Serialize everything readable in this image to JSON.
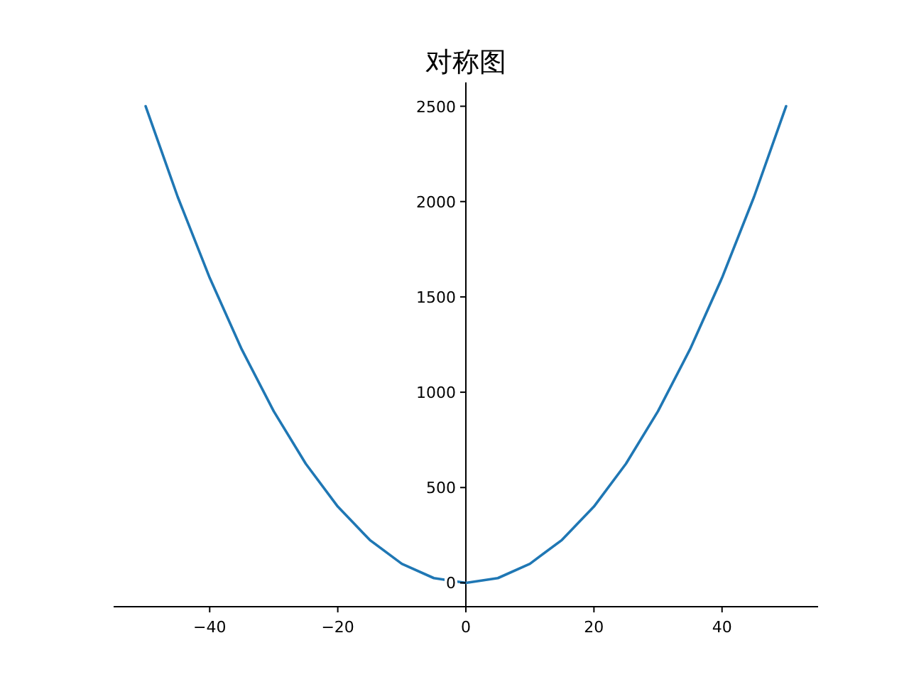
{
  "chart_data": {
    "type": "line",
    "title": "对称图",
    "x": [
      -50,
      -45,
      -40,
      -35,
      -30,
      -25,
      -20,
      -15,
      -10,
      -5,
      0,
      5,
      10,
      15,
      20,
      25,
      30,
      35,
      40,
      45,
      50
    ],
    "series": [
      {
        "color": "#1f77b4",
        "values": [
          2500,
          2025,
          1600,
          1225,
          900,
          625,
          400,
          225,
          100,
          25,
          0,
          25,
          100,
          225,
          400,
          625,
          900,
          1225,
          1600,
          2025,
          2500
        ]
      }
    ],
    "xlim": [
      -55,
      55
    ],
    "ylim": [
      -125,
      2625
    ],
    "xticks": [
      -40,
      -20,
      0,
      20,
      40
    ],
    "yticks": [
      0,
      500,
      1000,
      1500,
      2000,
      2500
    ],
    "grid": false,
    "marker": "none",
    "line_style": "solid"
  }
}
